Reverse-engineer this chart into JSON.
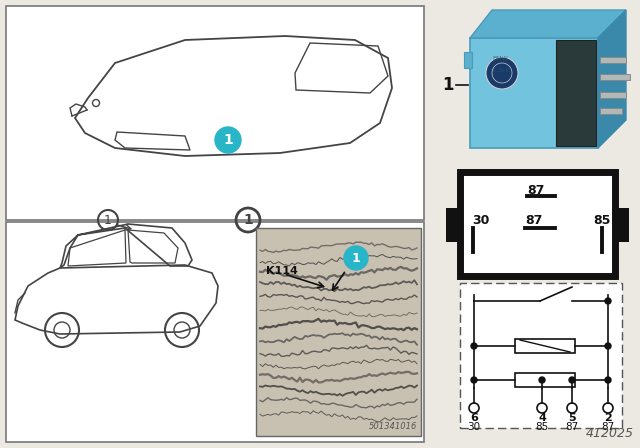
{
  "bg_color": "#ece8e2",
  "white": "#ffffff",
  "black": "#111111",
  "dark_gray": "#444444",
  "teal": "#29b5c8",
  "relay_blue_main": "#6ec6e0",
  "relay_blue_top": "#5ab0d2",
  "relay_blue_side": "#4898ba",
  "relay_blue_dark": "#3a7a96",
  "part_number": "412025",
  "photo_number": "501341016",
  "k114": "K114",
  "term_top": [
    "6",
    "4",
    "5",
    "2"
  ],
  "term_bot": [
    "30",
    "85",
    "87",
    "87"
  ]
}
